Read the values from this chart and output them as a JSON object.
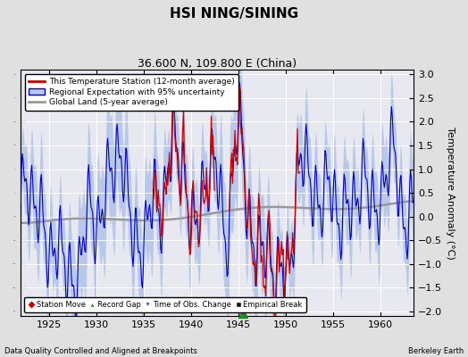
{
  "title": "HSI NING/SINING",
  "subtitle": "36.600 N, 109.800 E (China)",
  "ylabel": "Temperature Anomaly (°C)",
  "xlabel_footer_left": "Data Quality Controlled and Aligned at Breakpoints",
  "xlabel_footer_right": "Berkeley Earth",
  "xlim": [
    1922,
    1963.5
  ],
  "ylim": [
    -2.1,
    3.1
  ],
  "yticks": [
    -2,
    -1.5,
    -1,
    -0.5,
    0,
    0.5,
    1,
    1.5,
    2,
    2.5,
    3
  ],
  "xticks": [
    1925,
    1930,
    1935,
    1940,
    1945,
    1950,
    1955,
    1960
  ],
  "bg_color": "#e0e0e0",
  "plot_bg_color": "#e8e8f0",
  "uncertainty_color": "#b8c8e8",
  "regional_line_color": "#0000cc",
  "station_line_color": "#cc0000",
  "global_line_color": "#999999",
  "legend_entries": [
    "This Temperature Station (12-month average)",
    "Regional Expectation with 95% uncertainty",
    "Global Land (5-year average)"
  ],
  "marker_legend": [
    {
      "label": "Station Move",
      "color": "#cc0000",
      "marker": "D"
    },
    {
      "label": "Record Gap",
      "color": "#228822",
      "marker": "^"
    },
    {
      "label": "Time of Obs. Change",
      "color": "#2244cc",
      "marker": "v"
    },
    {
      "label": "Empirical Break",
      "color": "#111111",
      "marker": "s"
    }
  ],
  "record_gap_x": 1945.5,
  "record_gap_y": -2.05
}
